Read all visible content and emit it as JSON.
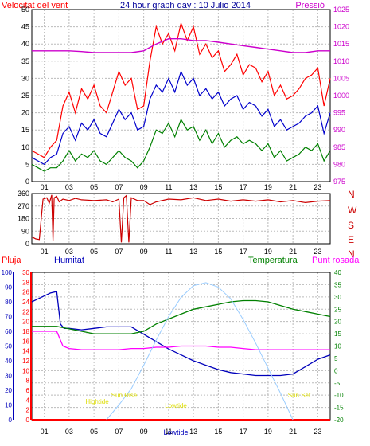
{
  "page": {
    "title": "24 hour graph day : 10 Julio 2014"
  },
  "colors": {
    "wind": "#ff0000",
    "gust": "#ff0000",
    "wind_avg": "#0000cc",
    "wind_low": "#008000",
    "pressure": "#cc00cc",
    "direction": "#cc0000",
    "rain": "#ff0000",
    "humidity": "#0000bb",
    "temperature": "#008000",
    "dewpoint": "#ff00ff",
    "sun": "#99ccff",
    "sun_labels": "#dddd00",
    "frame": "#000000",
    "grid": "#bbbbbb",
    "axis_text": "#000000"
  },
  "chart_data": [
    {
      "type": "line",
      "name": "wind-pressure",
      "title": "24 hour graph day : 10 Julio 2014",
      "ylabel_left": "Velocitat del vent",
      "ylabel_right": "Pressió",
      "x_ticks": [
        "01",
        "03",
        "05",
        "07",
        "09",
        "11",
        "13",
        "15",
        "17",
        "19",
        "21",
        "23"
      ],
      "x_range": [
        0,
        24
      ],
      "ylim_left": [
        0,
        50
      ],
      "y_ticks_left": [
        0,
        5,
        10,
        15,
        20,
        25,
        30,
        35,
        40,
        45,
        50
      ],
      "ylim_right": [
        975,
        1025
      ],
      "y_ticks_right": [
        975,
        980,
        985,
        990,
        995,
        1000,
        1005,
        1010,
        1015,
        1020,
        1025
      ],
      "series": [
        {
          "key": "gust",
          "x": [
            0,
            0.5,
            1,
            1.5,
            2,
            2.5,
            3,
            3.5,
            4,
            4.5,
            5,
            5.5,
            6,
            6.5,
            7,
            7.5,
            8,
            8.5,
            9,
            9.5,
            10,
            10.5,
            11,
            11.5,
            12,
            12.5,
            13,
            13.5,
            14,
            14.5,
            15,
            15.5,
            16,
            16.5,
            17,
            17.5,
            18,
            18.5,
            19,
            19.5,
            20,
            20.5,
            21,
            21.5,
            22,
            22.5,
            23,
            23.5,
            24
          ],
          "values": [
            9,
            8,
            7,
            10,
            12,
            22,
            26,
            20,
            27,
            24,
            28,
            22,
            20,
            26,
            32,
            28,
            30,
            21,
            22,
            35,
            45,
            40,
            43,
            38,
            46,
            41,
            45,
            37,
            40,
            36,
            38,
            32,
            34,
            37,
            31,
            34,
            33,
            29,
            32,
            25,
            28,
            24,
            25,
            27,
            30,
            31,
            33,
            22,
            30
          ]
        },
        {
          "key": "wind_avg",
          "x": [
            0,
            0.5,
            1,
            1.5,
            2,
            2.5,
            3,
            3.5,
            4,
            4.5,
            5,
            5.5,
            6,
            6.5,
            7,
            7.5,
            8,
            8.5,
            9,
            9.5,
            10,
            10.5,
            11,
            11.5,
            12,
            12.5,
            13,
            13.5,
            14,
            14.5,
            15,
            15.5,
            16,
            16.5,
            17,
            17.5,
            18,
            18.5,
            19,
            19.5,
            20,
            20.5,
            21,
            21.5,
            22,
            22.5,
            23,
            23.5,
            24
          ],
          "values": [
            7,
            6,
            5,
            7,
            8,
            14,
            16,
            12,
            17,
            15,
            18,
            14,
            13,
            17,
            21,
            18,
            20,
            15,
            16,
            24,
            28,
            26,
            30,
            26,
            32,
            28,
            30,
            25,
            27,
            24,
            26,
            22,
            24,
            25,
            21,
            23,
            22,
            19,
            21,
            16,
            18,
            15,
            16,
            17,
            19,
            20,
            22,
            14,
            20
          ]
        },
        {
          "key": "wind_low",
          "x": [
            0,
            0.5,
            1,
            1.5,
            2,
            2.5,
            3,
            3.5,
            4,
            4.5,
            5,
            5.5,
            6,
            6.5,
            7,
            7.5,
            8,
            8.5,
            9,
            9.5,
            10,
            10.5,
            11,
            11.5,
            12,
            12.5,
            13,
            13.5,
            14,
            14.5,
            15,
            15.5,
            16,
            16.5,
            17,
            17.5,
            18,
            18.5,
            19,
            19.5,
            20,
            20.5,
            21,
            21.5,
            22,
            22.5,
            23,
            23.5,
            24
          ],
          "values": [
            5,
            4,
            3,
            4,
            4,
            6,
            9,
            6,
            8,
            7,
            9,
            6,
            5,
            7,
            9,
            7,
            6,
            4,
            6,
            10,
            15,
            14,
            17,
            13,
            18,
            15,
            16,
            12,
            15,
            11,
            14,
            10,
            12,
            13,
            11,
            12,
            11,
            9,
            11,
            7,
            9,
            6,
            7,
            8,
            10,
            9,
            11,
            6,
            9
          ]
        },
        {
          "key": "pressure",
          "axis": "right",
          "x": [
            0,
            1,
            2,
            3,
            4,
            5,
            6,
            7,
            8,
            9,
            10,
            11,
            12,
            13,
            14,
            15,
            16,
            17,
            18,
            19,
            20,
            21,
            22,
            23,
            24
          ],
          "values": [
            1013,
            1013,
            1013,
            1013,
            1012.8,
            1012.5,
            1012.5,
            1012.5,
            1012.5,
            1013,
            1015,
            1016.5,
            1016.5,
            1016,
            1016,
            1015.5,
            1015,
            1014.5,
            1014,
            1013.5,
            1013,
            1012.5,
            1012.5,
            1013,
            1013
          ]
        }
      ]
    },
    {
      "type": "line",
      "name": "wind-direction",
      "x_ticks": [
        "01",
        "03",
        "05",
        "07",
        "09",
        "11",
        "13",
        "15",
        "17",
        "19",
        "21",
        "23"
      ],
      "x_range": [
        0,
        24
      ],
      "ylim": [
        0,
        360
      ],
      "y_ticks": [
        0,
        90,
        180,
        270,
        360
      ],
      "compass_labels": [
        "N",
        "W",
        "S",
        "E",
        "N"
      ],
      "series": [
        {
          "key": "direction",
          "x": [
            0,
            0.3,
            0.6,
            0.9,
            1.2,
            1.4,
            1.6,
            1.7,
            1.8,
            2.0,
            2.2,
            2.5,
            3,
            3.5,
            4,
            5,
            6,
            6.5,
            7,
            7.2,
            7.4,
            7.6,
            7.8,
            8.0,
            8.5,
            9,
            9.5,
            10,
            11,
            12,
            13,
            14,
            15,
            16,
            17,
            18,
            19,
            20,
            21,
            22,
            23,
            24
          ],
          "values": [
            50,
            35,
            30,
            320,
            330,
            290,
            350,
            20,
            330,
            340,
            300,
            320,
            310,
            325,
            315,
            310,
            315,
            300,
            320,
            10,
            330,
            345,
            10,
            330,
            310,
            310,
            280,
            300,
            320,
            315,
            330,
            310,
            320,
            305,
            315,
            305,
            315,
            300,
            310,
            295,
            305,
            310
          ]
        }
      ]
    },
    {
      "type": "line",
      "name": "rain-humidity-temperature",
      "legend": [
        "Pluja",
        "Humitat",
        "Temperatura",
        "Punt rosada"
      ],
      "x_ticks": [
        "01",
        "03",
        "05",
        "07",
        "09",
        "11",
        "13",
        "15",
        "17",
        "19",
        "21",
        "23"
      ],
      "x_range": [
        0,
        24
      ],
      "ylim_humidity": [
        0,
        100
      ],
      "y_ticks_humidity": [
        0,
        10,
        20,
        30,
        40,
        50,
        60,
        70,
        80,
        90,
        100
      ],
      "ylim_rain": [
        0,
        30
      ],
      "y_ticks_rain": [
        0,
        2,
        4,
        6,
        8,
        10,
        12,
        14,
        16,
        18,
        20,
        22,
        24,
        26,
        28,
        30
      ],
      "ylim_temperature": [
        -20,
        40
      ],
      "y_ticks_temperature": [
        -20,
        -15,
        -10,
        -5,
        0,
        5,
        10,
        15,
        20,
        25,
        30,
        35,
        40
      ],
      "annotations": [
        "Hightide",
        "Sun Rise",
        "Lowtide",
        "Sun Set"
      ],
      "bottom_label": "Lowtide",
      "series": [
        {
          "key": "rain",
          "axis": "rain",
          "x": [
            0,
            24
          ],
          "values": [
            0,
            0
          ]
        },
        {
          "key": "humidity",
          "axis": "humidity",
          "x": [
            0,
            0.5,
            1,
            1.5,
            2,
            2.3,
            2.6,
            3,
            4,
            5,
            6,
            7,
            8,
            9,
            10,
            11,
            12,
            13,
            14,
            15,
            16,
            17,
            18,
            19,
            20,
            21,
            22,
            23,
            24
          ],
          "values": [
            80,
            82,
            84,
            86,
            87,
            65,
            62,
            62,
            61,
            62,
            63,
            63,
            63,
            58,
            53,
            48,
            44,
            40,
            37,
            34,
            32,
            31,
            30,
            30,
            30,
            31,
            36,
            41,
            44
          ]
        },
        {
          "key": "temperature",
          "axis": "temperature",
          "x": [
            0,
            1,
            2,
            3,
            4,
            5,
            6,
            7,
            8,
            9,
            10,
            11,
            12,
            13,
            14,
            15,
            16,
            17,
            18,
            19,
            20,
            21,
            22,
            23,
            24
          ],
          "values": [
            18,
            18,
            18,
            17,
            16,
            15,
            15,
            15,
            15,
            16,
            19,
            21,
            23,
            25,
            26,
            27,
            28,
            28.5,
            28.5,
            28,
            26.5,
            25,
            24,
            23,
            22
          ]
        },
        {
          "key": "dewpoint",
          "axis": "temperature",
          "x": [
            0,
            1,
            2,
            2.5,
            3,
            4,
            5,
            6,
            7,
            8,
            9,
            10,
            11,
            12,
            13,
            14,
            15,
            16,
            17,
            18,
            19,
            20,
            21,
            22,
            23,
            24
          ],
          "values": [
            16,
            16,
            16,
            10,
            9,
            8.5,
            8.5,
            8.5,
            8.5,
            9,
            9,
            9.5,
            9.5,
            10,
            10,
            10,
            9.5,
            9.5,
            9,
            8.5,
            8.5,
            8.5,
            8.5,
            8.5,
            8.5,
            8.5
          ]
        },
        {
          "key": "sun",
          "axis": "humidity",
          "x": [
            6,
            7,
            8,
            9,
            10,
            11,
            12,
            13,
            14,
            15,
            16,
            17,
            18,
            19,
            20,
            21
          ],
          "values": [
            0,
            10,
            21,
            37,
            54,
            70,
            83,
            91,
            93,
            90,
            82,
            68,
            52,
            35,
            18,
            0
          ]
        }
      ]
    }
  ]
}
